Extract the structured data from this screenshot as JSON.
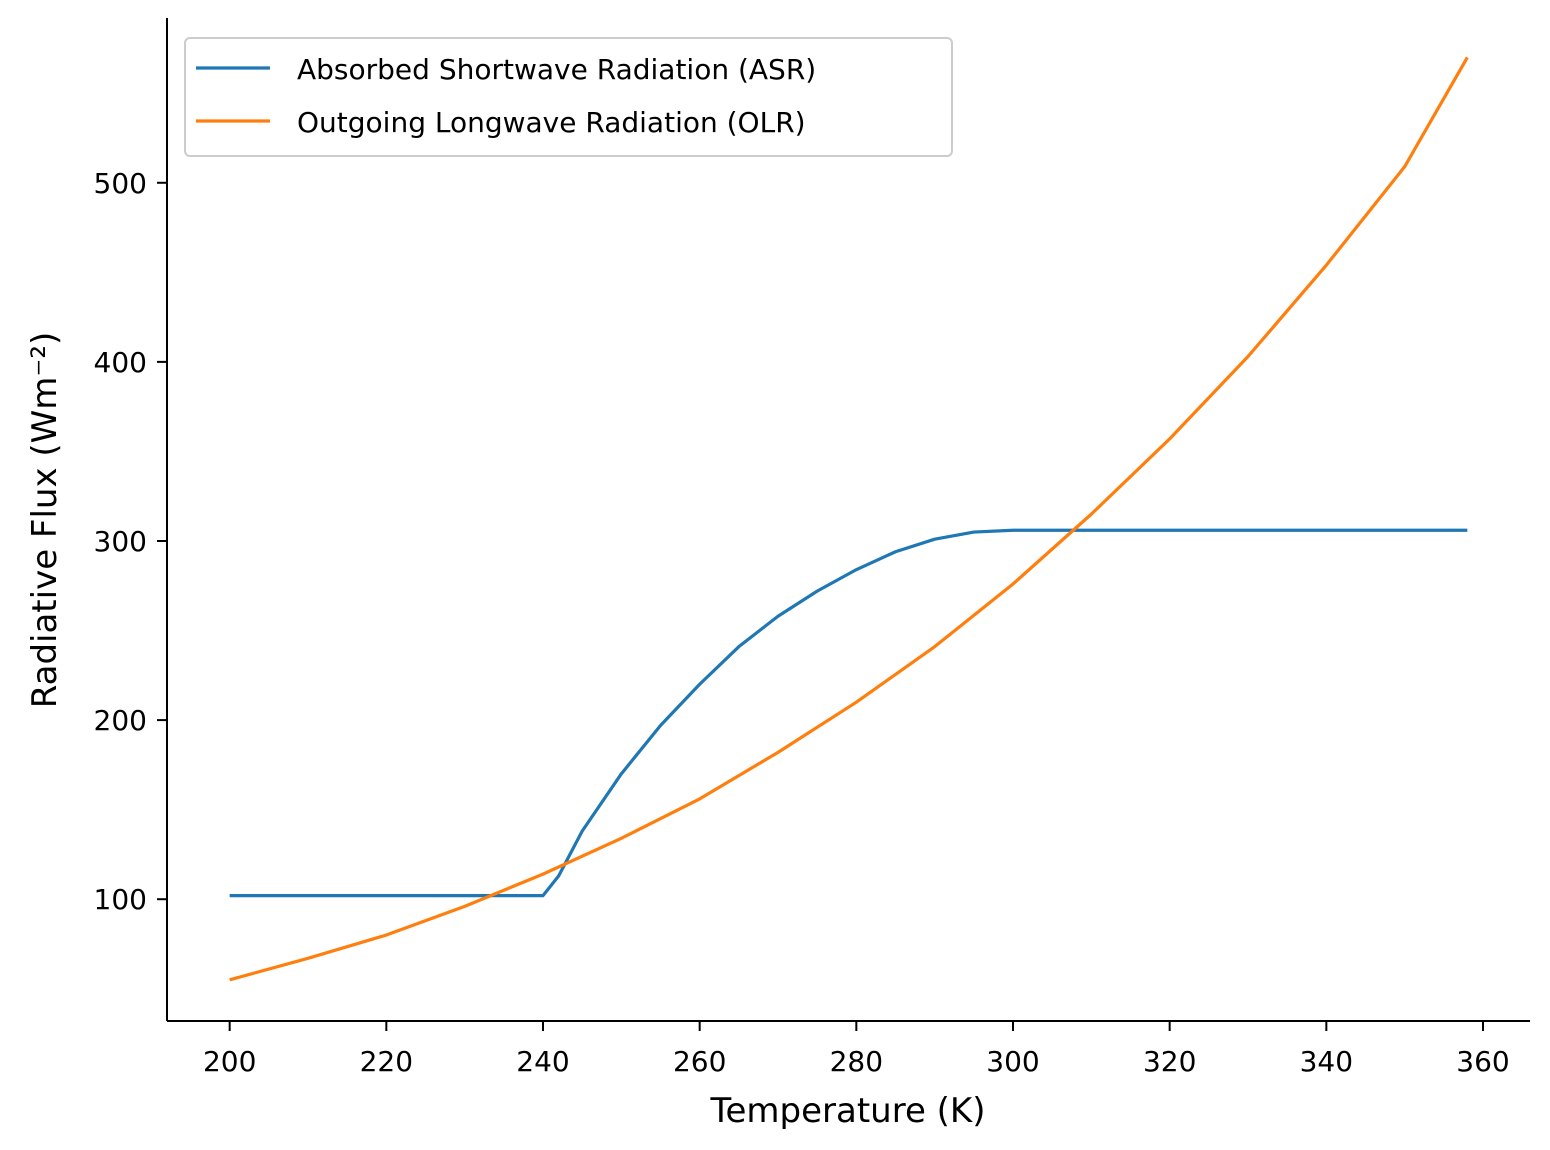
{
  "chart_data": {
    "type": "line",
    "title": "",
    "xlabel": "Temperature (K)",
    "ylabel": "Radiative Flux (Wm⁻²)",
    "xlim": [
      192,
      366
    ],
    "ylim": [
      32,
      592
    ],
    "xticks": [
      200,
      220,
      240,
      260,
      280,
      300,
      320,
      340,
      360
    ],
    "yticks": [
      100,
      200,
      300,
      400,
      500
    ],
    "grid": false,
    "legend_position": "top-left",
    "series": [
      {
        "name": "Absorbed Shortwave Radiation (ASR)",
        "color": "#1f77b4",
        "x": [
          200,
          210,
          220,
          230,
          240,
          242,
          245,
          250,
          255,
          260,
          265,
          270,
          275,
          280,
          285,
          290,
          295,
          300,
          310,
          320,
          330,
          340,
          350,
          358
        ],
        "y": [
          102,
          102,
          102,
          102,
          102,
          113,
          138,
          170,
          197,
          220,
          241,
          258,
          272,
          284,
          294,
          301,
          305,
          306,
          306,
          306,
          306,
          306,
          306,
          306
        ]
      },
      {
        "name": "Outgoing Longwave Radiation (OLR)",
        "color": "#ff7f0e",
        "x": [
          200,
          210,
          220,
          230,
          240,
          250,
          260,
          270,
          280,
          290,
          300,
          310,
          320,
          330,
          340,
          350,
          358
        ],
        "y": [
          55,
          67,
          80,
          96,
          114,
          134,
          156,
          182,
          210,
          241,
          276,
          315,
          357,
          403,
          454,
          509,
          570
        ]
      }
    ]
  }
}
